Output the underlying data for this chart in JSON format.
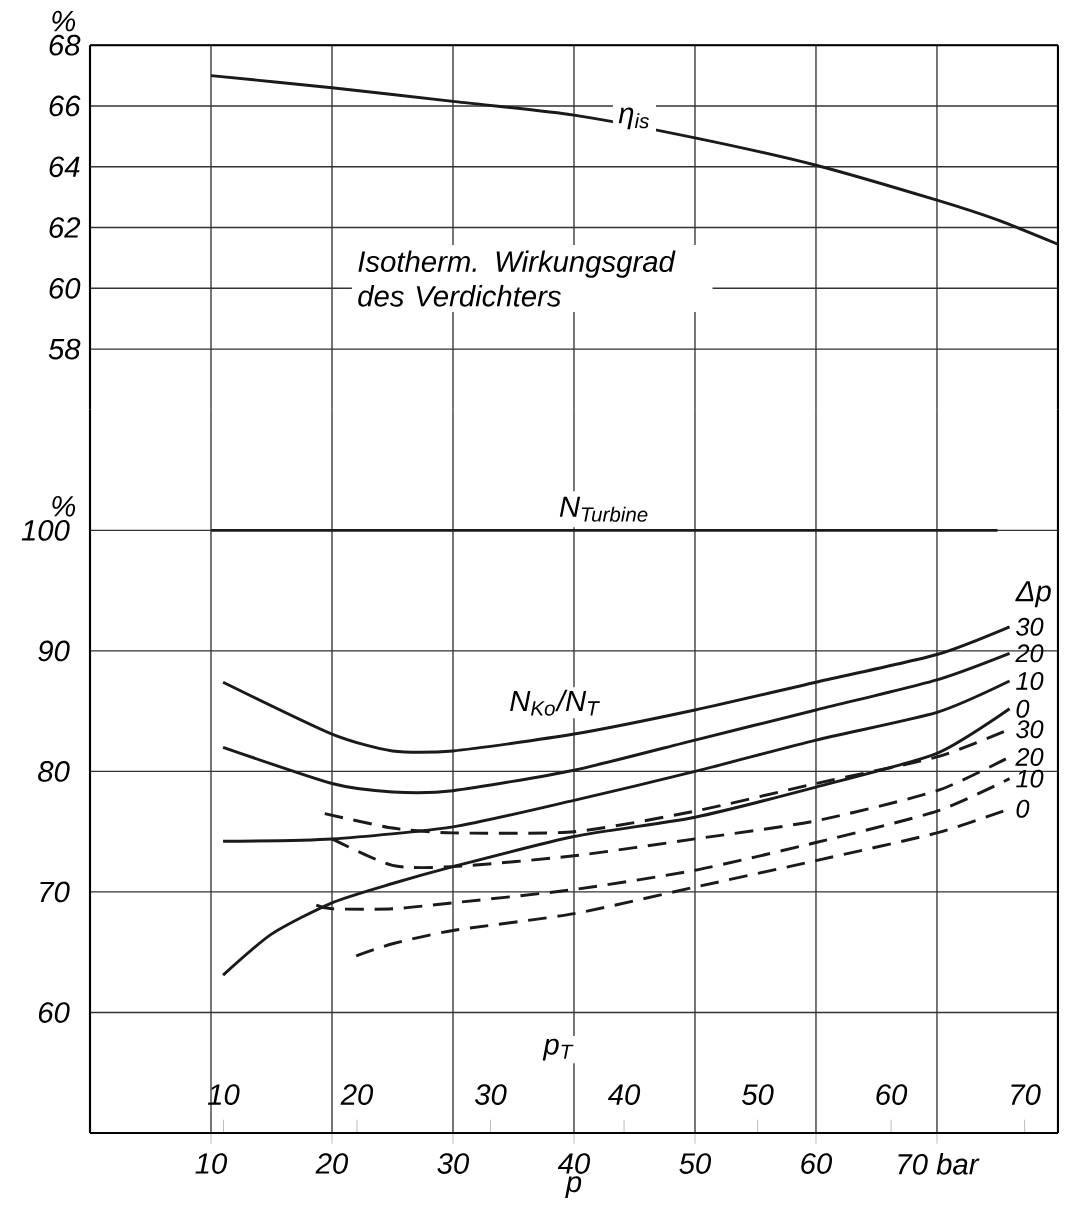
{
  "chart_data": [
    {
      "type": "line",
      "ylabel": "%",
      "xlim": [
        0,
        80
      ],
      "xticks": [
        10,
        20,
        30,
        40,
        50,
        60,
        70
      ],
      "ylim": [
        56,
        68
      ],
      "yticks": [
        58,
        60,
        62,
        64,
        66,
        68
      ],
      "grid": true,
      "tick_labels": "y",
      "annotations": [
        "Isotherm. Wirkungsgrad des Verdichters"
      ],
      "series": [
        {
          "name": "η$_{is}$",
          "color": "#1a1a1a",
          "x": [
            10,
            20,
            30,
            40,
            50,
            60,
            70,
            75,
            80
          ],
          "values": [
            67.0,
            66.6,
            66.15,
            65.7,
            64.95,
            64.05,
            62.9,
            62.25,
            61.45
          ]
        }
      ]
    },
    {
      "type": "line",
      "ylabel": "%",
      "xlabel": "p",
      "x2label": "p$_{T}$",
      "xlim": [
        0,
        80
      ],
      "xticks": [
        10,
        20,
        30,
        40,
        50,
        60,
        {
          "value": 70,
          "label": "70 bar"
        }
      ],
      "x2lim": [
        0,
        72.5
      ],
      "x2ticks": [
        10,
        20,
        30,
        40,
        50,
        60,
        70
      ],
      "ylim": [
        50,
        110
      ],
      "yticks": [
        60,
        70,
        80,
        90,
        100
      ],
      "grid": true,
      "annotations": [
        "N$_{Ko}$/N$_{T}$",
        "Δp"
      ],
      "series": [
        {
          "name": "N$_{Turbine}$",
          "color": "#1a1a1a",
          "x": [
            10,
            75
          ],
          "values": [
            100,
            100
          ]
        },
        {
          "name": "30",
          "color": "#1a1a1a",
          "line_style": "solid",
          "x": [
            11,
            20,
            25,
            30,
            40,
            50,
            60,
            70,
            76
          ],
          "values": [
            87.4,
            83.1,
            81.7,
            81.7,
            83.1,
            85.1,
            87.4,
            89.7,
            92.0
          ]
        },
        {
          "name": "20",
          "color": "#1a1a1a",
          "line_style": "solid",
          "x": [
            11,
            20,
            25,
            30,
            40,
            50,
            60,
            70,
            76
          ],
          "values": [
            82.0,
            79.0,
            78.3,
            78.4,
            80.1,
            82.6,
            85.1,
            87.6,
            89.8
          ]
        },
        {
          "name": "10",
          "color": "#1a1a1a",
          "line_style": "solid",
          "x": [
            11,
            20,
            30,
            40,
            50,
            60,
            70,
            76
          ],
          "values": [
            74.2,
            74.4,
            75.4,
            77.6,
            80.0,
            82.6,
            84.9,
            87.5
          ]
        },
        {
          "name": "0",
          "color": "#1a1a1a",
          "line_style": "solid",
          "x": [
            11,
            15,
            20,
            25,
            30,
            40,
            50,
            60,
            70,
            76
          ],
          "values": [
            63.1,
            66.5,
            69.1,
            70.7,
            72.1,
            74.6,
            76.2,
            78.7,
            81.5,
            85.2
          ]
        },
        {
          "name": "30",
          "color": "#1a1a1a",
          "line_style": "dashed",
          "x": [
            19.4,
            25,
            30,
            40,
            50,
            60,
            70,
            76
          ],
          "values": [
            76.5,
            75.3,
            74.9,
            75.0,
            76.7,
            79.0,
            81.2,
            83.5
          ]
        },
        {
          "name": "20",
          "color": "#1a1a1a",
          "line_style": "dashed",
          "x": [
            20,
            25,
            30,
            40,
            50,
            60,
            70,
            76
          ],
          "values": [
            74.4,
            72.2,
            72.1,
            73.0,
            74.4,
            75.9,
            78.4,
            81.2
          ]
        },
        {
          "name": "10",
          "color": "#1a1a1a",
          "line_style": "dashed",
          "x": [
            18.7,
            20,
            25,
            30,
            40,
            50,
            60,
            70,
            76
          ],
          "values": [
            68.9,
            68.6,
            68.6,
            69.1,
            70.2,
            71.8,
            74.1,
            76.7,
            79.4
          ]
        },
        {
          "name": "0",
          "color": "#1a1a1a",
          "line_style": "dashed",
          "x": [
            22,
            25,
            30,
            40,
            50,
            60,
            70,
            76
          ],
          "values": [
            64.7,
            65.7,
            66.8,
            68.2,
            70.4,
            72.6,
            74.9,
            76.9
          ]
        }
      ]
    }
  ]
}
